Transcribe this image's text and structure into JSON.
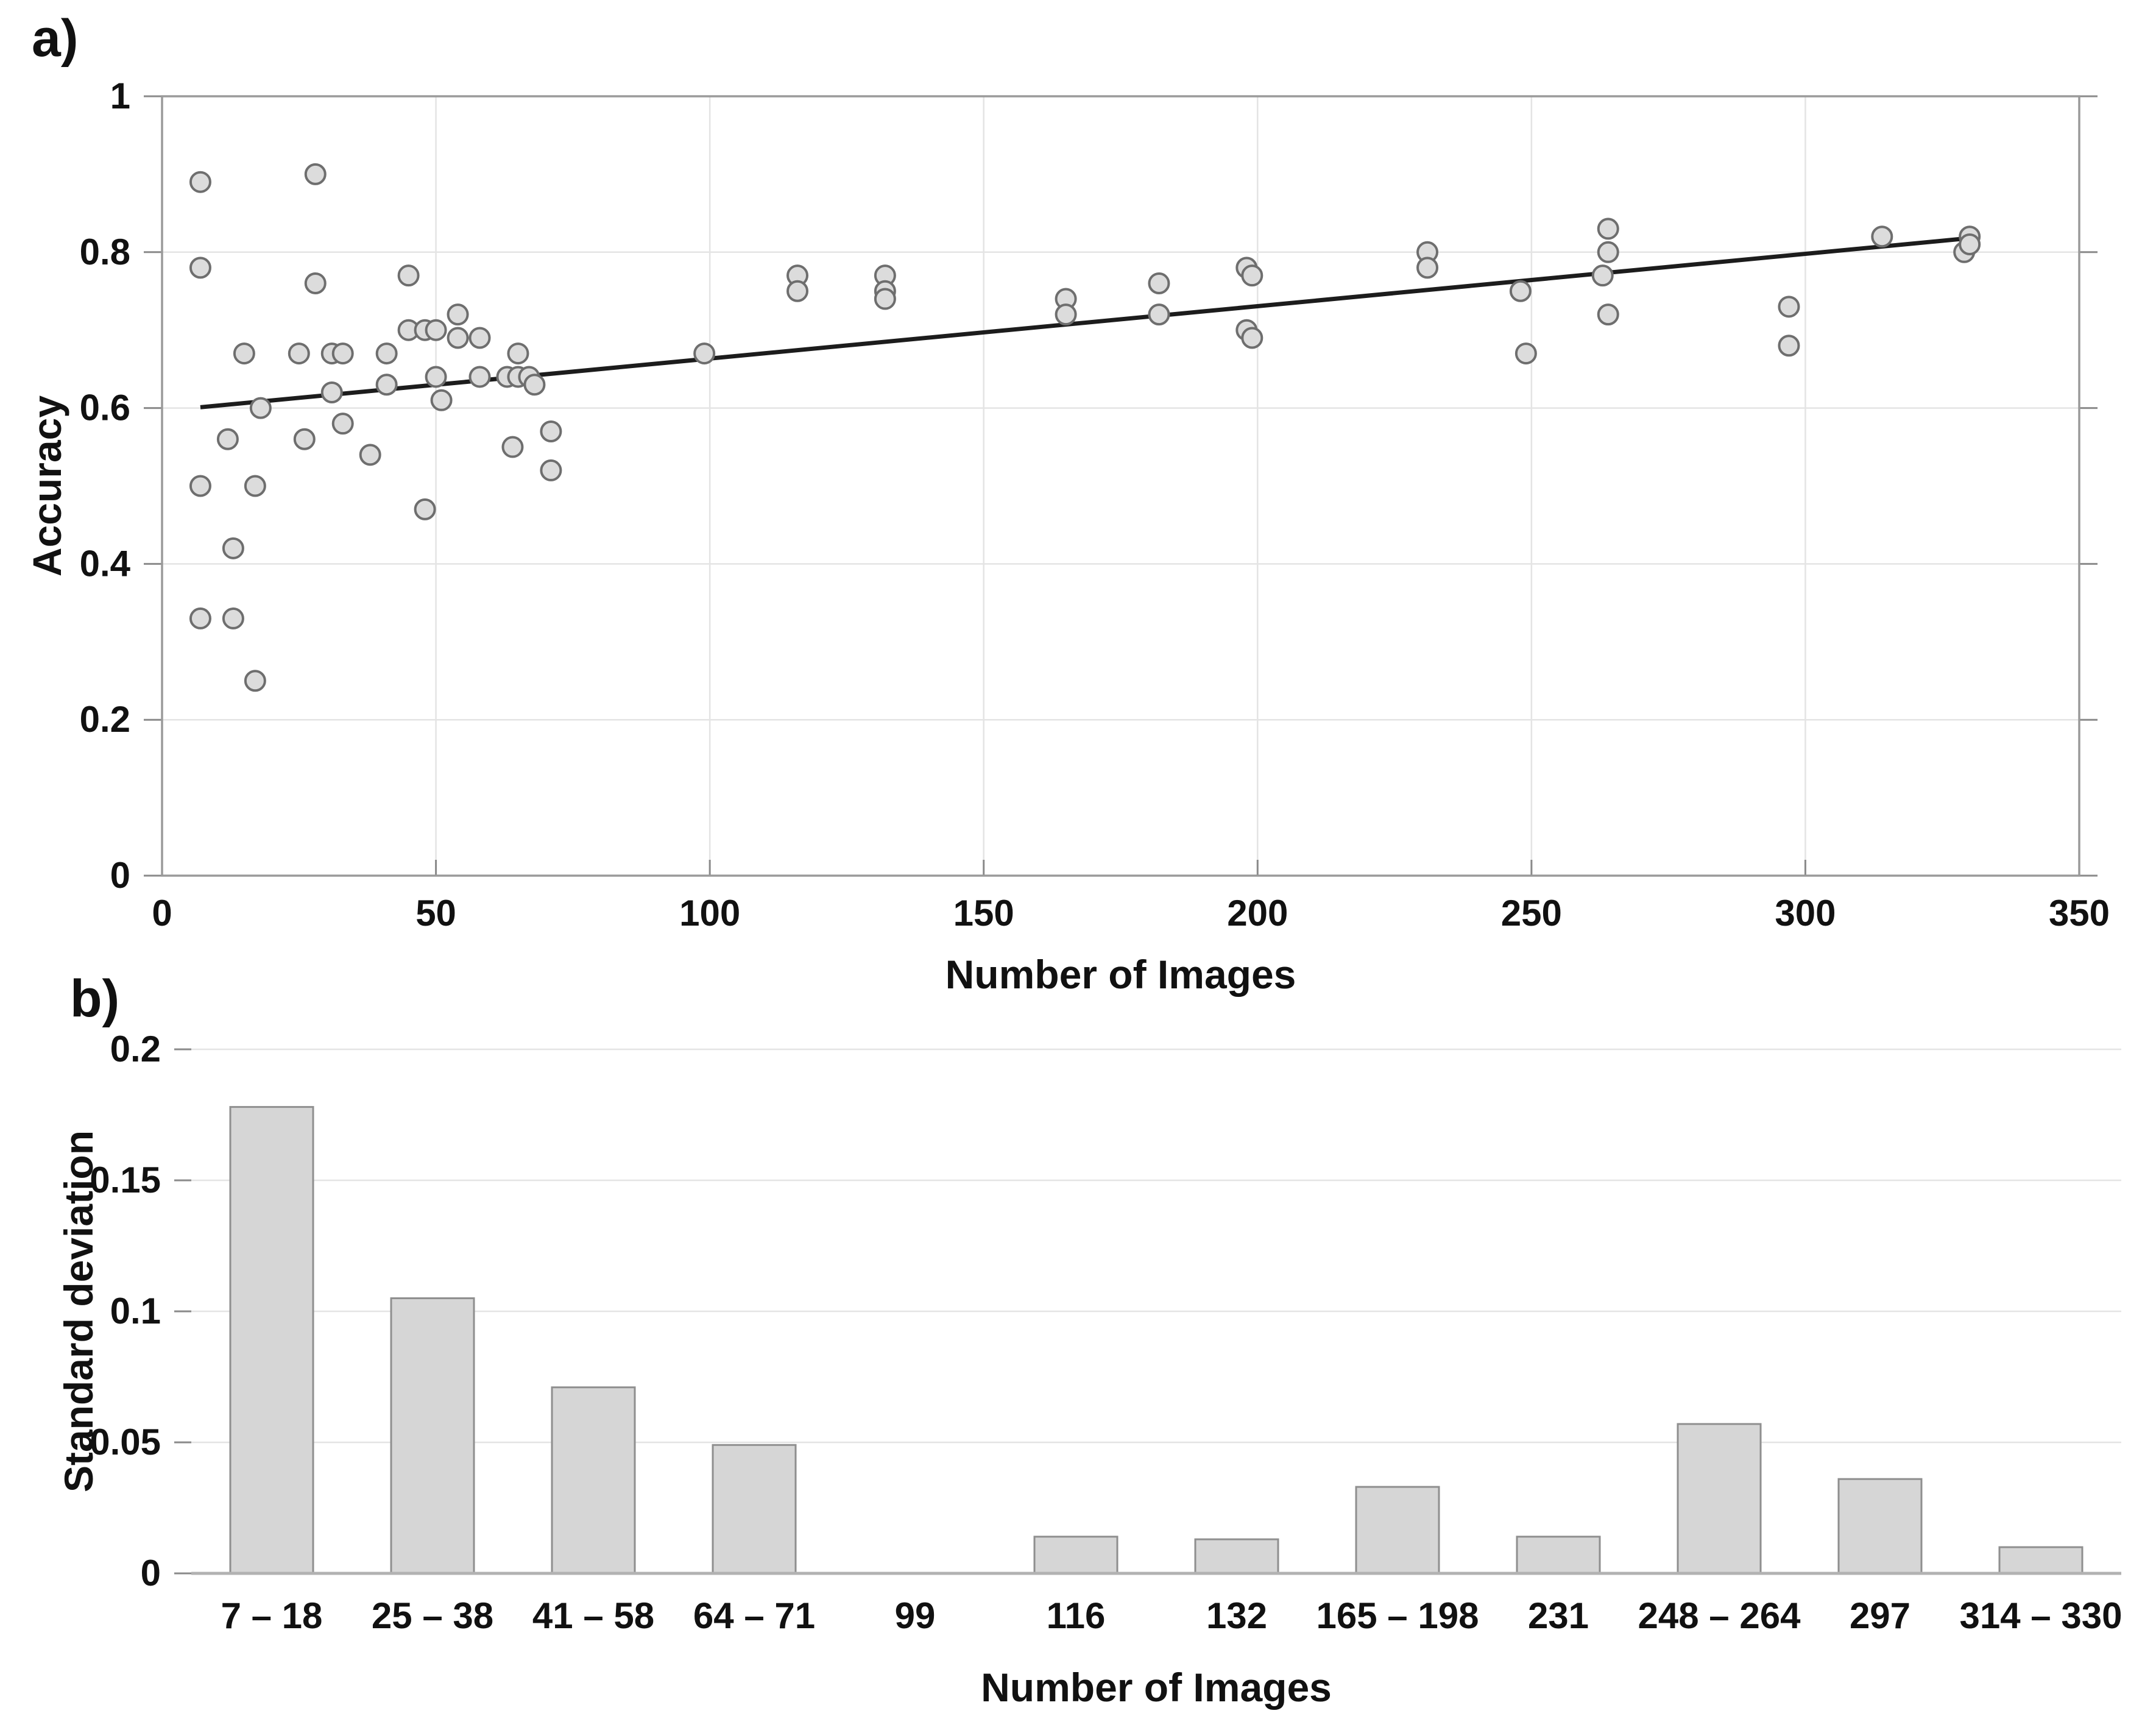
{
  "panel_a": {
    "label": "a)"
  },
  "panel_b": {
    "label": "b)"
  },
  "colors": {
    "marker_fill": "#dcdcdc",
    "marker_stroke": "#6e6e6e",
    "trend_line": "#1c1c1c",
    "grid": "#e4e4e4",
    "frame": "#9a9a9a",
    "tick": "#8a8a8a",
    "bar_fill": "#d6d6d6",
    "bar_stroke": "#8f8f8f",
    "baseline": "#b2b2b2",
    "text": "#111111"
  },
  "chart_data": [
    {
      "type": "scatter",
      "title": "",
      "xlabel": "Number of Images",
      "ylabel": "Accuracy",
      "xlim": [
        0,
        350
      ],
      "ylim": [
        0,
        1
      ],
      "xticks": [
        0,
        50,
        100,
        150,
        200,
        250,
        300,
        350
      ],
      "xtick_labels": [
        "0",
        "50",
        "100",
        "150",
        "200",
        "250",
        "300",
        "350"
      ],
      "yticks": [
        0,
        0.2,
        0.4,
        0.6,
        0.8,
        1
      ],
      "ytick_labels": [
        "0",
        "0.2",
        "0.4",
        "0.6",
        "0.8",
        "1"
      ],
      "grid": true,
      "legend": "none",
      "points": [
        [
          7,
          0.89
        ],
        [
          7,
          0.78
        ],
        [
          7,
          0.5
        ],
        [
          7,
          0.33
        ],
        [
          12,
          0.56
        ],
        [
          13,
          0.42
        ],
        [
          13,
          0.33
        ],
        [
          15,
          0.67
        ],
        [
          17,
          0.5
        ],
        [
          17,
          0.25
        ],
        [
          18,
          0.6
        ],
        [
          25,
          0.67
        ],
        [
          26,
          0.56
        ],
        [
          28,
          0.9
        ],
        [
          28,
          0.76
        ],
        [
          31,
          0.67
        ],
        [
          31,
          0.62
        ],
        [
          33,
          0.67
        ],
        [
          33,
          0.58
        ],
        [
          38,
          0.54
        ],
        [
          41,
          0.67
        ],
        [
          41,
          0.63
        ],
        [
          45,
          0.77
        ],
        [
          45,
          0.7
        ],
        [
          48,
          0.7
        ],
        [
          50,
          0.7
        ],
        [
          48,
          0.47
        ],
        [
          50,
          0.64
        ],
        [
          51,
          0.61
        ],
        [
          54,
          0.72
        ],
        [
          54,
          0.69
        ],
        [
          58,
          0.69
        ],
        [
          58,
          0.64
        ],
        [
          63,
          0.64
        ],
        [
          65,
          0.64
        ],
        [
          67,
          0.64
        ],
        [
          65,
          0.67
        ],
        [
          68,
          0.63
        ],
        [
          64,
          0.55
        ],
        [
          71,
          0.57
        ],
        [
          71,
          0.52
        ],
        [
          99,
          0.67
        ],
        [
          116,
          0.77
        ],
        [
          116,
          0.75
        ],
        [
          132,
          0.77
        ],
        [
          132,
          0.75
        ],
        [
          132,
          0.74
        ],
        [
          165,
          0.74
        ],
        [
          165,
          0.72
        ],
        [
          182,
          0.76
        ],
        [
          182,
          0.72
        ],
        [
          198,
          0.78
        ],
        [
          199,
          0.77
        ],
        [
          198,
          0.7
        ],
        [
          199,
          0.69
        ],
        [
          231,
          0.8
        ],
        [
          231,
          0.78
        ],
        [
          248,
          0.75
        ],
        [
          249,
          0.67
        ],
        [
          263,
          0.77
        ],
        [
          264,
          0.83
        ],
        [
          264,
          0.8
        ],
        [
          264,
          0.72
        ],
        [
          297,
          0.73
        ],
        [
          297,
          0.68
        ],
        [
          314,
          0.82
        ],
        [
          329,
          0.8
        ],
        [
          330,
          0.82
        ],
        [
          330,
          0.81
        ]
      ],
      "trend_line": {
        "x1": 7,
        "y1": 0.601,
        "x2": 330,
        "y2": 0.818
      }
    },
    {
      "type": "bar",
      "title": "",
      "xlabel": "Number of Images",
      "ylabel": "Standard deviation",
      "ylim": [
        0,
        0.2
      ],
      "yticks": [
        0,
        0.05,
        0.1,
        0.15,
        0.2
      ],
      "ytick_labels": [
        "0",
        "0.05",
        "0.1",
        "0.15",
        "0.2"
      ],
      "grid": true,
      "legend": "none",
      "categories": [
        "7 – 18",
        "25 – 38",
        "41 – 58",
        "64 – 71",
        "99",
        "116",
        "132",
        "165 – 198",
        "231",
        "248 – 264",
        "297",
        "314 – 330"
      ],
      "values": [
        0.178,
        0.105,
        0.071,
        0.049,
        0,
        0.014,
        0.013,
        0.033,
        0.014,
        0.057,
        0.036,
        0.01
      ]
    }
  ]
}
